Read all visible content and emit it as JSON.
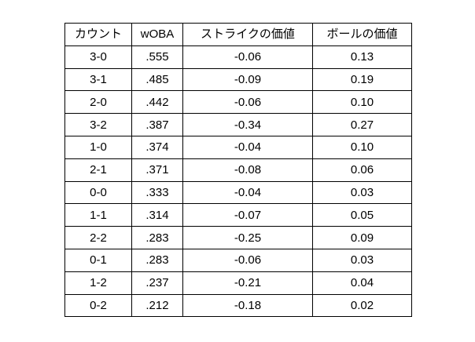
{
  "page": {
    "background_color": "#ffffff",
    "text_color": "#000000",
    "border_color": "#000000"
  },
  "table": {
    "columns": [
      "カウント",
      "wOBA",
      "ストライクの価値",
      "ボールの価値"
    ],
    "rows": [
      [
        "3-0",
        ".555",
        "-0.06",
        "0.13"
      ],
      [
        "3-1",
        ".485",
        "-0.09",
        "0.19"
      ],
      [
        "2-0",
        ".442",
        "-0.06",
        "0.10"
      ],
      [
        "3-2",
        ".387",
        "-0.34",
        "0.27"
      ],
      [
        "1-0",
        ".374",
        "-0.04",
        "0.10"
      ],
      [
        "2-1",
        ".371",
        "-0.08",
        "0.06"
      ],
      [
        "0-0",
        ".333",
        "-0.04",
        "0.03"
      ],
      [
        "1-1",
        ".314",
        "-0.07",
        "0.05"
      ],
      [
        "2-2",
        ".283",
        "-0.25",
        "0.09"
      ],
      [
        "0-1",
        ".283",
        "-0.06",
        "0.03"
      ],
      [
        "1-2",
        ".237",
        "-0.21",
        "0.04"
      ],
      [
        "0-2",
        ".212",
        "-0.18",
        "0.02"
      ]
    ]
  },
  "chart_data": {
    "type": "table",
    "title": "",
    "columns": [
      "カウント",
      "wOBA",
      "ストライクの価値",
      "ボールの価値"
    ],
    "rows": [
      {
        "カウント": "3-0",
        "wOBA": 0.555,
        "ストライクの価値": -0.06,
        "ボールの価値": 0.13
      },
      {
        "カウント": "3-1",
        "wOBA": 0.485,
        "ストライクの価値": -0.09,
        "ボールの価値": 0.19
      },
      {
        "カウント": "2-0",
        "wOBA": 0.442,
        "ストライクの価値": -0.06,
        "ボールの価値": 0.1
      },
      {
        "カウント": "3-2",
        "wOBA": 0.387,
        "ストライクの価値": -0.34,
        "ボールの価値": 0.27
      },
      {
        "カウント": "1-0",
        "wOBA": 0.374,
        "ストライクの価値": -0.04,
        "ボールの価値": 0.1
      },
      {
        "カウント": "2-1",
        "wOBA": 0.371,
        "ストライクの価値": -0.08,
        "ボールの価値": 0.06
      },
      {
        "カウント": "0-0",
        "wOBA": 0.333,
        "ストライクの価値": -0.04,
        "ボールの価値": 0.03
      },
      {
        "カウント": "1-1",
        "wOBA": 0.314,
        "ストライクの価値": -0.07,
        "ボールの価値": 0.05
      },
      {
        "カウント": "2-2",
        "wOBA": 0.283,
        "ストライクの価値": -0.25,
        "ボールの価値": 0.09
      },
      {
        "カウント": "0-1",
        "wOBA": 0.283,
        "ストライクの価値": -0.06,
        "ボールの価値": 0.03
      },
      {
        "カウント": "1-2",
        "wOBA": 0.237,
        "ストライクの価値": -0.21,
        "ボールの価値": 0.04
      },
      {
        "カウント": "0-2",
        "wOBA": 0.212,
        "ストライクの価値": -0.18,
        "ボールの価値": 0.02
      }
    ]
  }
}
